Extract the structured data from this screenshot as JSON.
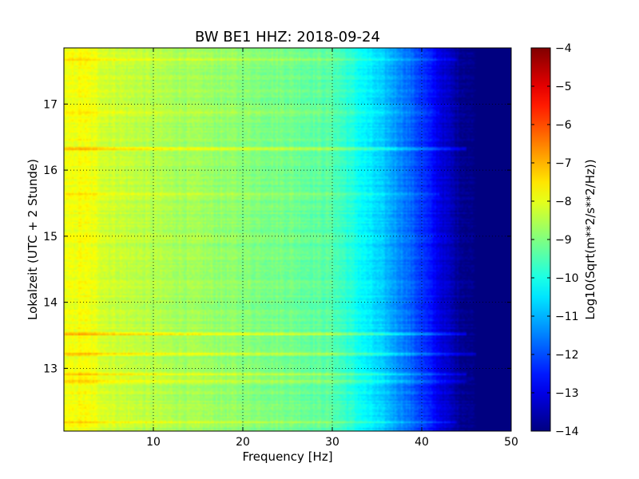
{
  "chart_data": {
    "type": "heatmap",
    "title": "BW BE1 HHZ: 2018-09-24",
    "xlabel": "Frequency [Hz]",
    "ylabel": "Lokalzeit (UTC + 2 Stunde)",
    "colorbar_label": "Log10(Sqrt(m**2/s**2/Hz))",
    "colormap": "jet",
    "xlim": [
      0,
      50
    ],
    "ylim": [
      17.85,
      12.05
    ],
    "clim": [
      -14,
      -4
    ],
    "x_ticks": [
      10,
      20,
      30,
      40,
      50
    ],
    "x_tick_labels": [
      "10",
      "20",
      "30",
      "40",
      "50"
    ],
    "y_ticks": [
      13,
      14,
      15,
      16,
      17
    ],
    "y_tick_labels": [
      "13",
      "14",
      "15",
      "16",
      "17"
    ],
    "colorbar_ticks": [
      -4,
      -5,
      -6,
      -7,
      -8,
      -9,
      -10,
      -11,
      -12,
      -13,
      -14
    ],
    "colorbar_tick_labels": [
      "−4",
      "−5",
      "−6",
      "−7",
      "−8",
      "−9",
      "−10",
      "−11",
      "−12",
      "−13",
      "−14"
    ],
    "grid": true,
    "spectrum_profile": {
      "frequency_hz": [
        0,
        2,
        5,
        10,
        15,
        20,
        25,
        30,
        32,
        34,
        36,
        38,
        40,
        42,
        44,
        46,
        50
      ],
      "log_psd": [
        -8.0,
        -7.8,
        -8.2,
        -8.5,
        -8.7,
        -8.9,
        -9.1,
        -9.4,
        -9.9,
        -10.4,
        -10.9,
        -11.5,
        -12.2,
        -13.0,
        -13.7,
        -14.0,
        -14.0
      ]
    },
    "bright_bands": [
      {
        "time": 12.18,
        "max_freq_hz": 44,
        "delta": 0.7
      },
      {
        "time": 12.8,
        "max_freq_hz": 45,
        "delta": 0.8
      },
      {
        "time": 12.91,
        "max_freq_hz": 45,
        "delta": 0.8
      },
      {
        "time": 13.22,
        "max_freq_hz": 46,
        "delta": 1.0
      },
      {
        "time": 13.52,
        "max_freq_hz": 45,
        "delta": 1.1
      },
      {
        "time": 15.63,
        "max_freq_hz": 42,
        "delta": 0.5
      },
      {
        "time": 16.32,
        "max_freq_hz": 45,
        "delta": 1.2
      },
      {
        "time": 16.88,
        "max_freq_hz": 42,
        "delta": 0.5
      },
      {
        "time": 17.68,
        "max_freq_hz": 44,
        "delta": 0.6
      }
    ]
  }
}
